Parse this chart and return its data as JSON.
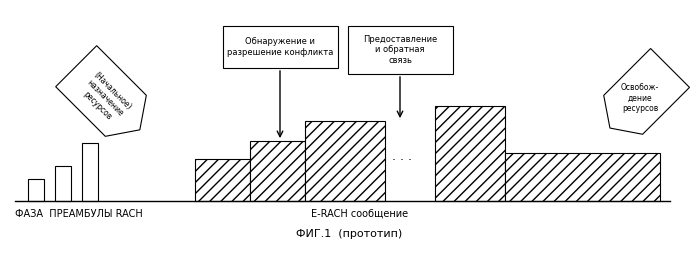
{
  "bg_color": "#ffffff",
  "title": "ФИГ.1  (прототип)",
  "label_rach": "ФАЗА  ПРЕАМБУЛЫ RACH",
  "label_erach": "E-RACH сообщение",
  "label_conflict": "Обнаружение и\nразрешение конфликта",
  "label_provision": "Предоставление\nи обратная\nсвязь",
  "label_initial": "(Начальное)\nназначение\nресурсов",
  "label_release": "Освобож-\nдение\nресурсов",
  "figsize": [
    6.99,
    2.66
  ],
  "dpi": 100
}
